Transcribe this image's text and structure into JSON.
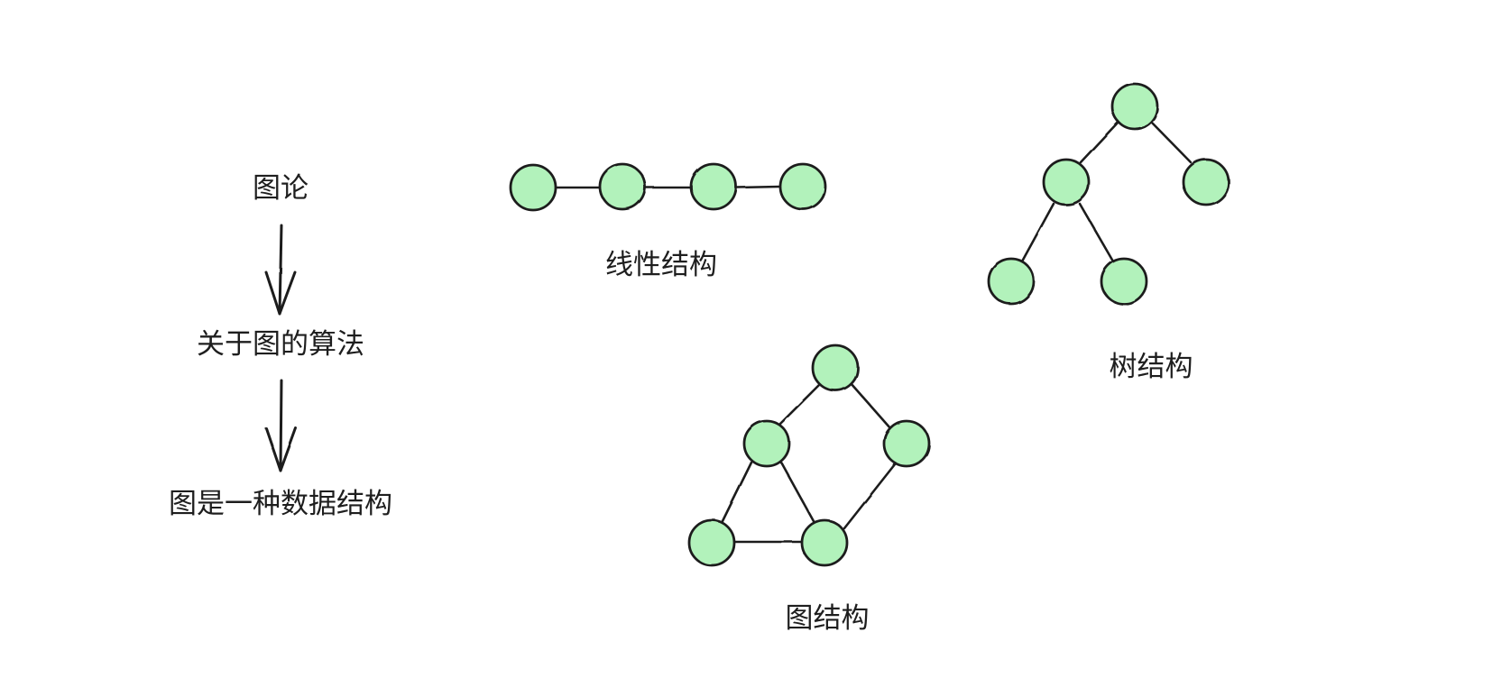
{
  "style": {
    "node_fill": "#b2f2bb",
    "stroke": "#1e1e1e",
    "background": "#ffffff"
  },
  "flow": {
    "items": [
      "图论",
      "关于图的算法",
      "图是一种数据结构"
    ]
  },
  "linear": {
    "label": "线性结构",
    "node_count": 4,
    "edges": [
      [
        0,
        1
      ],
      [
        1,
        2
      ],
      [
        2,
        3
      ]
    ]
  },
  "tree": {
    "label": "树结构",
    "node_count": 5,
    "edges": [
      [
        0,
        1
      ],
      [
        0,
        2
      ],
      [
        1,
        3
      ],
      [
        1,
        4
      ]
    ]
  },
  "graph": {
    "label": "图结构",
    "node_count": 5,
    "edges": [
      [
        0,
        1
      ],
      [
        0,
        2
      ],
      [
        1,
        3
      ],
      [
        1,
        4
      ],
      [
        2,
        4
      ],
      [
        3,
        4
      ]
    ]
  }
}
